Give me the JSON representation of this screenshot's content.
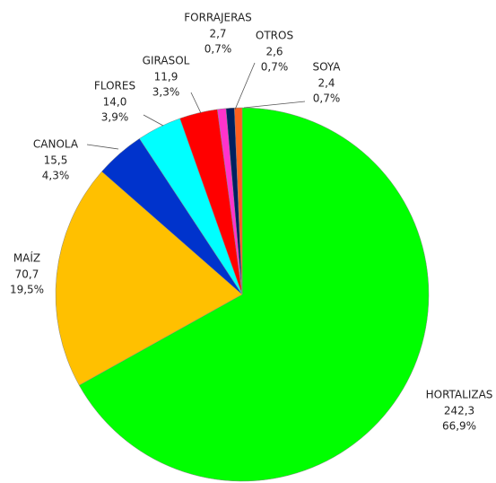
{
  "chart_data": {
    "type": "pie",
    "categories": [
      "HORTALIZAS",
      "MAÍZ",
      "CANOLA",
      "FLORES",
      "GIRASOL",
      "FORRAJERAS",
      "OTROS",
      "SOYA"
    ],
    "values": [
      242.3,
      70.7,
      15.5,
      14.0,
      11.9,
      2.7,
      2.6,
      2.4
    ],
    "value_labels": [
      "242,3",
      "70,7",
      "15,5",
      "14,0",
      "11,9",
      "2,7",
      "2,6",
      "2,4"
    ],
    "percent_labels": [
      "66,9%",
      "19,5%",
      "4,3%",
      "3,9%",
      "3,3%",
      "0,7%",
      "0,7%",
      "0,7%"
    ],
    "colors": [
      "#00ff00",
      "#ffc000",
      "#0033cc",
      "#00ffff",
      "#ff0000",
      "#ff33cc",
      "#002060",
      "#ff5f1f"
    ]
  }
}
